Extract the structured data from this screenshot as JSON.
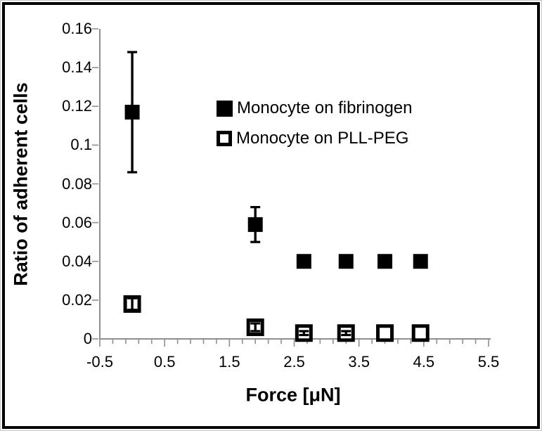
{
  "chart_data": {
    "type": "scatter",
    "title": "",
    "xlabel": "Force [μN]",
    "ylabel": "Ratio of adherent cells",
    "xlim": [
      -0.5,
      5.5
    ],
    "ylim": [
      0,
      0.16
    ],
    "x_major_ticks": [
      -0.5,
      0.5,
      1.5,
      2.5,
      3.5,
      4.5,
      5.5
    ],
    "x_major_tick_labels": [
      "-0.5",
      "0.5",
      "1.5",
      "2.5",
      "3.5",
      "4.5",
      "5.5"
    ],
    "x_minor_tick_step": 0.2,
    "y_ticks": [
      0,
      0.02,
      0.04,
      0.06,
      0.08,
      0.1,
      0.12,
      0.14,
      0.16
    ],
    "y_tick_labels": [
      "0",
      "0.02",
      "0.04",
      "0.06",
      "0.08",
      "0.1",
      "0.12",
      "0.14",
      "0.16"
    ],
    "grid": false,
    "legend_position": "inside-center-right",
    "series": [
      {
        "name": "Monocyte on fibrinogen",
        "marker": "filled-square",
        "color": "#000000",
        "x": [
          0,
          1.9,
          2.65,
          3.3,
          3.9,
          4.45
        ],
        "y": [
          0.117,
          0.059,
          0.04,
          0.04,
          0.04,
          0.04
        ],
        "yerr": [
          0.031,
          0.009,
          0,
          0,
          0,
          0
        ]
      },
      {
        "name": "Monocyte on PLL-PEG",
        "marker": "open-square",
        "color": "#000000",
        "x": [
          0,
          1.9,
          2.65,
          3.3,
          3.9,
          4.45
        ],
        "y": [
          0.018,
          0.006,
          0.003,
          0.003,
          0.003,
          0.003
        ],
        "yerr": [
          0.003,
          0.002,
          0.001,
          0.001,
          0,
          0
        ]
      }
    ]
  },
  "colors": {
    "marker": "#000000",
    "axis": "#8f8f8f",
    "text": "#000000",
    "background": "#ffffff",
    "frame": "#000000"
  }
}
